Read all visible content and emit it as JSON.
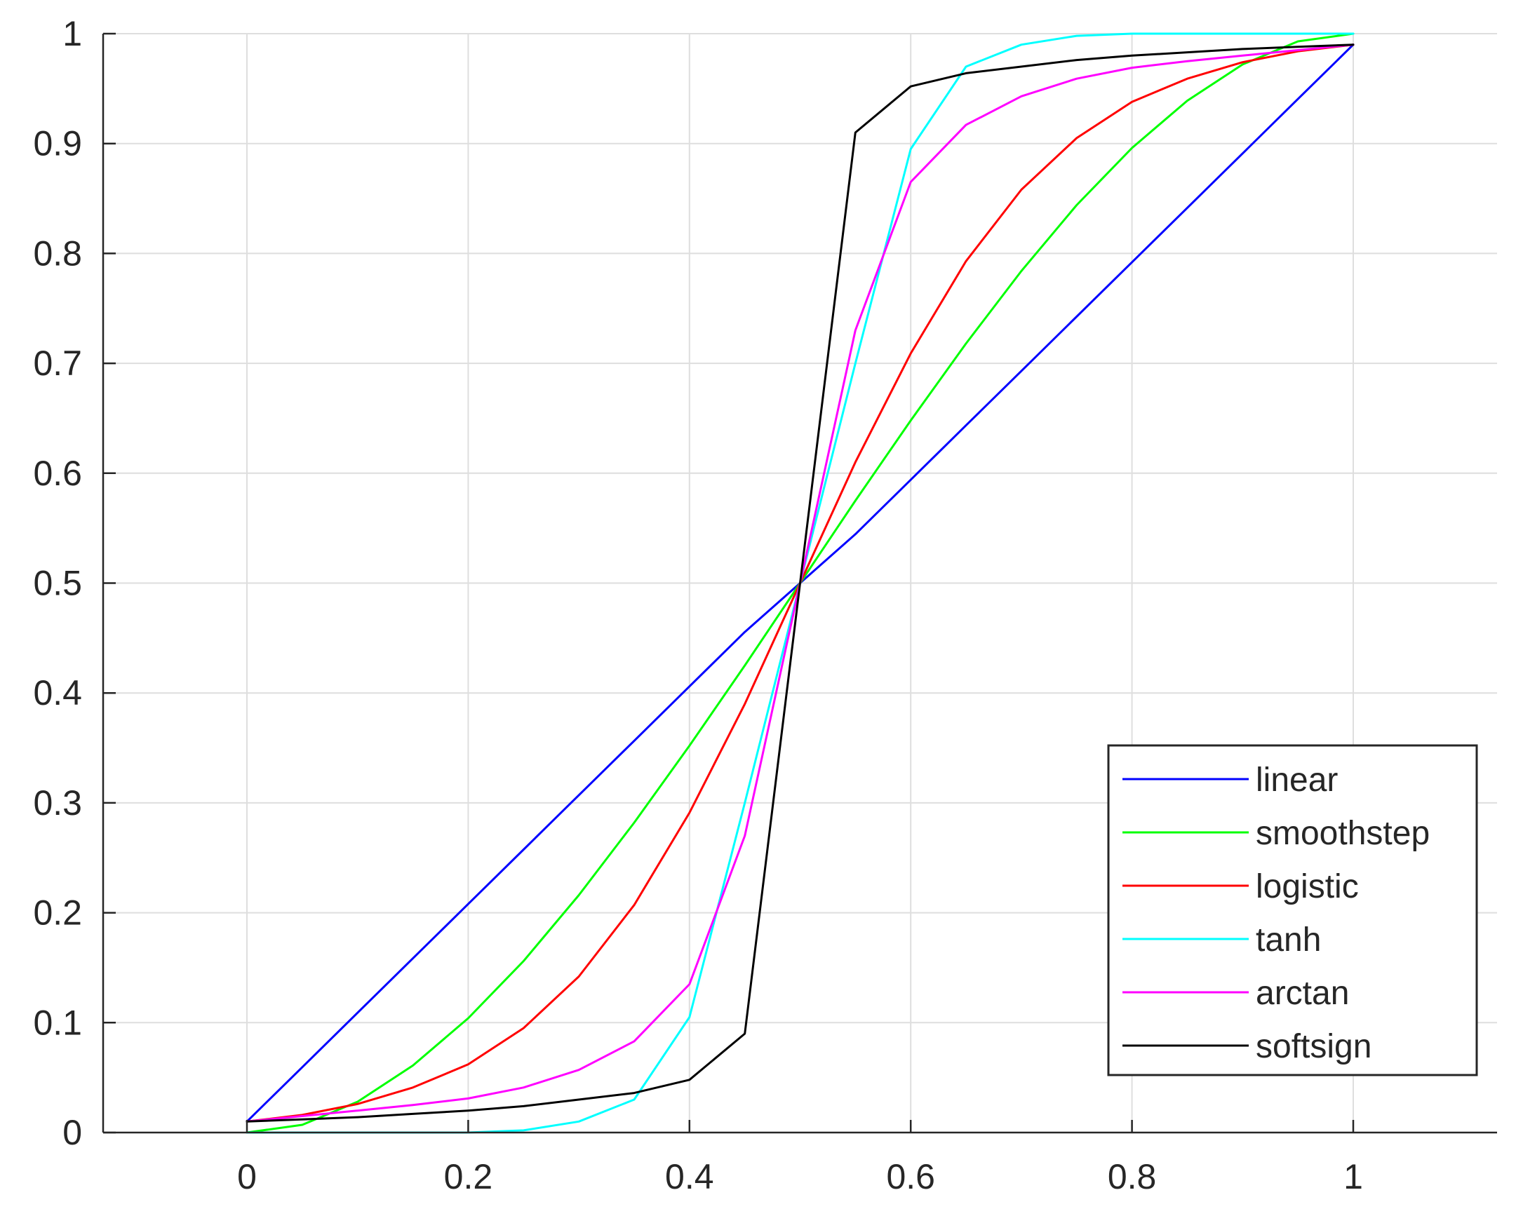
{
  "chart_data": {
    "type": "line",
    "title": "",
    "xlabel": "",
    "ylabel": "",
    "xlim": [
      -0.13,
      1.13
    ],
    "ylim": [
      0,
      1
    ],
    "x_ticks": [
      0,
      0.2,
      0.4,
      0.6,
      0.8,
      1
    ],
    "x_tick_labels": [
      "0",
      "0.2",
      "0.4",
      "0.6",
      "0.8",
      "1"
    ],
    "y_ticks": [
      0,
      0.1,
      0.2,
      0.3,
      0.4,
      0.5,
      0.6,
      0.7,
      0.8,
      0.9,
      1
    ],
    "y_tick_labels": [
      "0",
      "0.1",
      "0.2",
      "0.3",
      "0.4",
      "0.5",
      "0.6",
      "0.7",
      "0.8",
      "0.9",
      "1"
    ],
    "grid": true,
    "legend_position": "bottom-right",
    "x": [
      0,
      0.05,
      0.1,
      0.15,
      0.2,
      0.25,
      0.3,
      0.35,
      0.4,
      0.45,
      0.5,
      0.55,
      0.6,
      0.65,
      0.7,
      0.75,
      0.8,
      0.85,
      0.9,
      0.95,
      1
    ],
    "series": [
      {
        "name": "linear",
        "color": "#0000ff",
        "values": [
          0.01,
          0.0595,
          0.109,
          0.1585,
          0.208,
          0.2575,
          0.307,
          0.3565,
          0.406,
          0.4555,
          0.5,
          0.5445,
          0.594,
          0.6435,
          0.693,
          0.7425,
          0.792,
          0.8415,
          0.891,
          0.9405,
          0.99
        ]
      },
      {
        "name": "smoothstep",
        "color": "#00ff00",
        "values": [
          0,
          0.007,
          0.028,
          0.061,
          0.104,
          0.156,
          0.216,
          0.282,
          0.352,
          0.425,
          0.5,
          0.575,
          0.648,
          0.718,
          0.784,
          0.844,
          0.896,
          0.939,
          0.972,
          0.993,
          1.0
        ]
      },
      {
        "name": "logistic",
        "color": "#ff0000",
        "values": [
          0.01,
          0.016,
          0.026,
          0.041,
          0.062,
          0.095,
          0.142,
          0.207,
          0.291,
          0.39,
          0.5,
          0.61,
          0.709,
          0.793,
          0.858,
          0.905,
          0.938,
          0.959,
          0.974,
          0.984,
          0.99
        ]
      },
      {
        "name": "tanh",
        "color": "#00ffff",
        "values": [
          0,
          0,
          0,
          0,
          0,
          0.002,
          0.01,
          0.03,
          0.105,
          0.3,
          0.5,
          0.7,
          0.895,
          0.97,
          0.99,
          0.998,
          1.0,
          1.0,
          1.0,
          1.0,
          1.0
        ]
      },
      {
        "name": "arctan",
        "color": "#ff00ff",
        "values": [
          0.01,
          0.015,
          0.02,
          0.025,
          0.031,
          0.041,
          0.057,
          0.083,
          0.135,
          0.27,
          0.5,
          0.73,
          0.865,
          0.917,
          0.943,
          0.959,
          0.969,
          0.975,
          0.98,
          0.985,
          0.99
        ]
      },
      {
        "name": "softsign",
        "color": "#000000",
        "values": [
          0.01,
          0.012,
          0.014,
          0.017,
          0.02,
          0.024,
          0.03,
          0.036,
          0.048,
          0.09,
          0.5,
          0.91,
          0.952,
          0.964,
          0.97,
          0.976,
          0.98,
          0.983,
          0.986,
          0.988,
          0.99
        ]
      }
    ]
  }
}
